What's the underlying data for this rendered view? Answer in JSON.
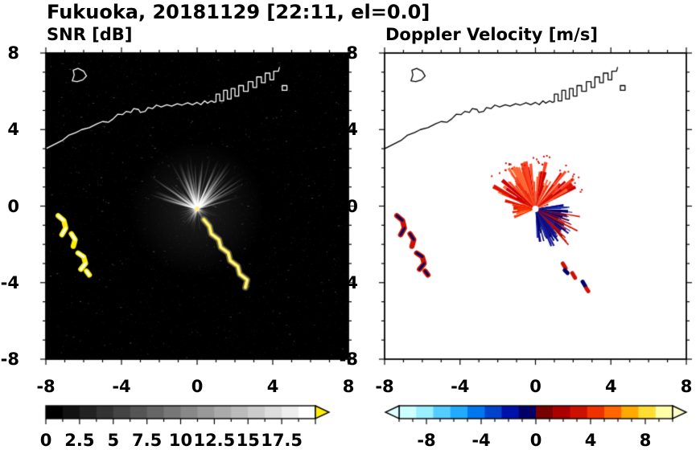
{
  "title": "Fukuoka, 20181129 [22:11, el=0.0]",
  "panels": [
    {
      "id": "snr",
      "label": "SNR [dB]"
    },
    {
      "id": "velocity",
      "label": "Doppler Velocity [m/s]"
    }
  ],
  "chart_data": [
    {
      "type": "heatmap",
      "title": "SNR [dB]",
      "xlim": [
        -8,
        8
      ],
      "ylim": [
        -8,
        8
      ],
      "xticks": [
        -8,
        -4,
        0,
        4,
        8
      ],
      "xtick_labels": [
        "-8",
        "-4",
        "0",
        "4",
        "8"
      ],
      "yticks": [
        8,
        4,
        0,
        -4,
        -8
      ],
      "ytick_labels": [
        "8",
        "4",
        "0",
        "-4",
        "-8"
      ],
      "minor_tick_step": 1,
      "background_color": "#000000",
      "coast_color": "#ffffff",
      "colorbar": {
        "orientation": "horizontal",
        "range": [
          0,
          20
        ],
        "labeled_ticks": [
          0,
          2.5,
          5,
          7.5,
          10,
          12.5,
          15,
          17.5
        ],
        "tick_labels": [
          "0",
          "2.5",
          "5",
          "7.5",
          "10",
          "12.5",
          "15",
          "17.5"
        ],
        "minor_step": 1.25,
        "style": "grayscale",
        "start_color": "#000000",
        "end_color": "#ffffff",
        "over_arrow_color": "#ffee00"
      },
      "radar_center": [
        0,
        -0.15
      ],
      "beams": [
        {
          "count": 130,
          "angle_range": [
            0,
            360
          ],
          "len_range": [
            0.3,
            1.4
          ],
          "alpha_range": [
            0.06,
            0.28
          ],
          "width": 1
        },
        {
          "count": 95,
          "angle_range": [
            15,
            168
          ],
          "len_range": [
            0.9,
            3.1
          ],
          "alpha_range": [
            0.18,
            0.8
          ],
          "width": 1.4
        },
        {
          "count": 28,
          "angle_range": [
            190,
            262
          ],
          "len_range": [
            0.3,
            1.2
          ],
          "alpha_range": [
            0.08,
            0.35
          ],
          "width": 1
        },
        {
          "count": 16,
          "angle_range": [
            288,
            352
          ],
          "len_range": [
            0.3,
            1.0
          ],
          "alpha_range": [
            0.08,
            0.3
          ],
          "width": 1
        }
      ],
      "speckle": {
        "count": 2800,
        "bright_count": 320
      },
      "echo_track_color": "#ffdd00",
      "echo_core_color": "#ffffff",
      "blob_main_color": "#ffee00",
      "blob_accent_color": "#ffffff",
      "center_dot_color": "#ffee88"
    },
    {
      "type": "heatmap",
      "title": "Doppler Velocity [m/s]",
      "xlim": [
        -8,
        8
      ],
      "ylim": [
        -8,
        8
      ],
      "xticks": [
        -8,
        -4,
        0,
        4,
        8
      ],
      "xtick_labels": [
        "-8",
        "-4",
        "0",
        "4",
        "8"
      ],
      "yticks": [
        8,
        4,
        0,
        -4,
        -8
      ],
      "ytick_labels": [
        "8",
        "4",
        "0",
        "-4",
        "-8"
      ],
      "minor_tick_step": 1,
      "background_color": "#ffffff",
      "coast_color": "#000000",
      "colorbar": {
        "orientation": "horizontal",
        "range": [
          -10,
          10
        ],
        "labeled_ticks": [
          -8,
          -4,
          0,
          4,
          8
        ],
        "tick_labels": [
          "-8",
          "-4",
          "0",
          "4",
          "8"
        ],
        "minor_step": 1,
        "style": "segmented",
        "colors": [
          "#ccffff",
          "#99eeff",
          "#55ccff",
          "#22aaff",
          "#0077ee",
          "#0044cc",
          "#0011aa",
          "#000066",
          "#770000",
          "#aa0000",
          "#cc1100",
          "#ee3300",
          "#ff6600",
          "#ffaa00",
          "#ffdd33",
          "#ffffaa"
        ],
        "under_arrow_color": "#e0ffff",
        "over_arrow_color": "#ffffcc"
      },
      "radar_center": [
        0,
        -0.15
      ],
      "wedges": [
        {
          "count": 95,
          "angle_range": [
            18,
            165
          ],
          "len_range": [
            0.6,
            2.6
          ],
          "width_deg": [
            2,
            6
          ],
          "colors": [
            "#dd1100",
            "#ee3311",
            "#ff4422",
            "#cc0000",
            "#ff6633"
          ]
        },
        {
          "count": 110,
          "angle_range": [
            -85,
            8
          ],
          "len_range": [
            0.35,
            1.8
          ],
          "width_deg": [
            2,
            6
          ],
          "colors": [
            "#000066",
            "#000088",
            "#101c8c",
            "#000050",
            "#2233aa"
          ]
        },
        {
          "count": 40,
          "angle_range": [
            -75,
            -5
          ],
          "len_range": [
            1.2,
            2.2
          ],
          "width_deg": [
            1,
            3
          ],
          "colors": [
            "#000066",
            "#1a1a99"
          ]
        },
        {
          "count": 26,
          "angle_range": [
            168,
            202
          ],
          "len_range": [
            0.3,
            1.3
          ],
          "width_deg": [
            3,
            7
          ],
          "colors": [
            "#ff3300",
            "#ff5511",
            "#dd2200"
          ]
        },
        {
          "count": 14,
          "angle_range": [
            -55,
            -8
          ],
          "len_range": [
            1.6,
            2.6
          ],
          "width_deg": [
            1,
            2
          ],
          "colors": [
            "#cc1100"
          ]
        }
      ],
      "scatter_specks": {
        "count": 30,
        "angle_range": [
          20,
          160
        ],
        "len_range": [
          2.4,
          3.0
        ],
        "color": "#cc1100"
      },
      "blob_main_color": "#cc1100",
      "blob_accent_color": "#000066",
      "track_blob_colors": [
        "#cc1100",
        "#000066"
      ],
      "center_dot_color": "#ffffff"
    }
  ],
  "map": {
    "coastline": [
      [
        -8.0,
        3.0
      ],
      [
        -7.5,
        3.25
      ],
      [
        -7.1,
        3.45
      ],
      [
        -6.8,
        3.7
      ],
      [
        -6.4,
        3.85
      ],
      [
        -6.1,
        4.0
      ],
      [
        -5.7,
        4.1
      ],
      [
        -5.3,
        4.3
      ],
      [
        -5.0,
        4.42
      ],
      [
        -4.7,
        4.38
      ],
      [
        -4.45,
        4.55
      ],
      [
        -4.2,
        4.8
      ],
      [
        -3.95,
        4.78
      ],
      [
        -3.75,
        4.95
      ],
      [
        -3.5,
        4.9
      ],
      [
        -3.35,
        5.1
      ],
      [
        -3.1,
        5.05
      ],
      [
        -3.0,
        4.9
      ],
      [
        -2.75,
        4.95
      ],
      [
        -2.6,
        5.15
      ],
      [
        -2.35,
        5.1
      ],
      [
        -2.15,
        5.28
      ],
      [
        -1.9,
        5.18
      ],
      [
        -1.6,
        5.3
      ],
      [
        -1.35,
        5.22
      ],
      [
        -1.05,
        5.35
      ],
      [
        -0.8,
        5.28
      ],
      [
        -0.5,
        5.4
      ],
      [
        -0.25,
        5.3
      ],
      [
        0.0,
        5.42
      ],
      [
        0.2,
        5.3
      ],
      [
        0.4,
        5.5
      ],
      [
        0.55,
        5.38
      ],
      [
        0.75,
        5.5
      ],
      [
        0.9,
        5.42
      ],
      [
        1.0,
        5.45
      ],
      [
        1.0,
        5.85
      ],
      [
        1.2,
        5.85
      ],
      [
        1.2,
        5.5
      ],
      [
        1.4,
        5.5
      ],
      [
        1.4,
        6.05
      ],
      [
        1.6,
        6.05
      ],
      [
        1.6,
        5.6
      ],
      [
        1.8,
        5.6
      ],
      [
        1.8,
        6.15
      ],
      [
        2.0,
        6.15
      ],
      [
        2.0,
        5.75
      ],
      [
        2.2,
        5.75
      ],
      [
        2.2,
        6.3
      ],
      [
        2.45,
        6.3
      ],
      [
        2.45,
        6.0
      ],
      [
        2.7,
        6.0
      ],
      [
        2.7,
        6.5
      ],
      [
        2.95,
        6.5
      ],
      [
        2.95,
        6.2
      ],
      [
        3.15,
        6.2
      ],
      [
        3.15,
        6.75
      ],
      [
        3.4,
        6.75
      ],
      [
        3.4,
        6.45
      ],
      [
        3.6,
        6.45
      ],
      [
        3.6,
        6.95
      ],
      [
        3.85,
        6.95
      ],
      [
        3.85,
        6.6
      ],
      [
        4.05,
        6.6
      ],
      [
        4.05,
        7.05
      ],
      [
        4.3,
        7.05
      ],
      [
        4.35,
        7.25
      ]
    ],
    "island": [
      [
        -6.6,
        6.55
      ],
      [
        -6.5,
        6.85
      ],
      [
        -6.55,
        7.1
      ],
      [
        -6.3,
        7.2
      ],
      [
        -6.0,
        7.05
      ],
      [
        -5.85,
        6.8
      ],
      [
        -6.05,
        6.6
      ],
      [
        -6.35,
        6.5
      ]
    ],
    "pier": [
      [
        4.5,
        6.05
      ],
      [
        4.75,
        6.05
      ],
      [
        4.75,
        6.3
      ],
      [
        4.5,
        6.3
      ]
    ]
  },
  "features": {
    "echo_track": [
      [
        0.35,
        -0.7
      ],
      [
        0.65,
        -1.05
      ],
      [
        0.75,
        -1.45
      ],
      [
        1.15,
        -1.75
      ],
      [
        1.25,
        -2.15
      ],
      [
        1.65,
        -2.45
      ],
      [
        1.75,
        -2.85
      ],
      [
        2.15,
        -3.15
      ],
      [
        2.25,
        -3.55
      ],
      [
        2.65,
        -3.85
      ],
      [
        2.55,
        -4.25
      ]
    ],
    "arc_blobs": [
      [
        [
          -7.35,
          -0.5
        ],
        [
          -7.05,
          -0.75
        ],
        [
          -6.95,
          -1.15
        ],
        [
          -7.15,
          -1.5
        ]
      ],
      [
        [
          -6.65,
          -1.45
        ],
        [
          -6.45,
          -1.75
        ],
        [
          -6.55,
          -2.1
        ]
      ],
      [
        [
          -6.3,
          -2.45
        ],
        [
          -6.0,
          -2.65
        ],
        [
          -5.9,
          -3.0
        ],
        [
          -6.15,
          -3.3
        ]
      ],
      [
        [
          -5.85,
          -3.4
        ],
        [
          -5.7,
          -3.6
        ]
      ]
    ],
    "track_blobs": [
      [
        [
          1.45,
          -3.0
        ],
        [
          1.6,
          -3.25
        ]
      ],
      [
        [
          1.55,
          -3.35
        ],
        [
          1.7,
          -3.5
        ]
      ],
      [
        [
          1.95,
          -3.5
        ],
        [
          2.1,
          -3.75
        ]
      ],
      [
        [
          2.5,
          -3.95
        ],
        [
          2.65,
          -4.2
        ]
      ],
      [
        [
          2.7,
          -4.3
        ],
        [
          2.8,
          -4.45
        ]
      ]
    ]
  }
}
